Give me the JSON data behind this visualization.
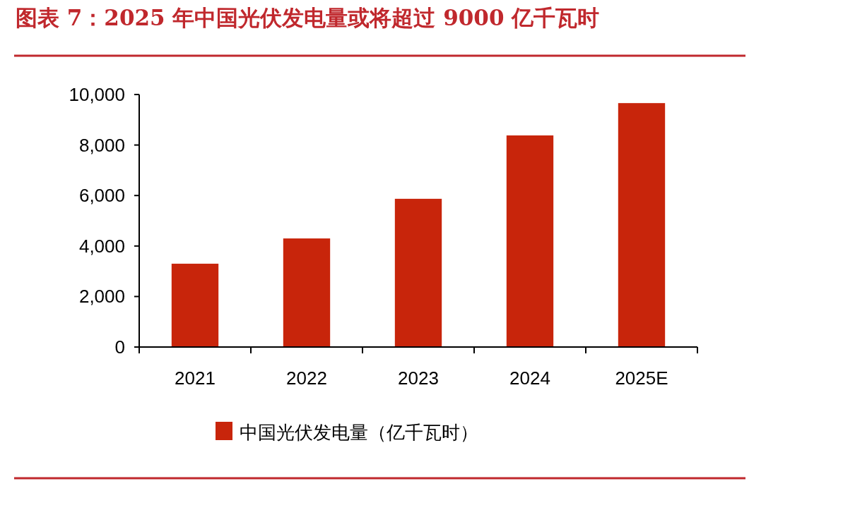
{
  "chart_data": {
    "type": "bar",
    "title": "图表 7：2025 年中国光伏发电量或将超过 9000 亿千瓦时",
    "categories": [
      "2021",
      "2022",
      "2023",
      "2024",
      "2025E"
    ],
    "series": [
      {
        "name": "中国光伏发电量（亿千瓦时）",
        "color": "#c8250b",
        "values": [
          3300,
          4300,
          5870,
          8380,
          9660
        ]
      }
    ],
    "ylim": [
      0,
      10000
    ],
    "yticks": [
      {
        "value": 0,
        "label": "0"
      },
      {
        "value": 2000,
        "label": "2,000"
      },
      {
        "value": 4000,
        "label": "4,000"
      },
      {
        "value": 6000,
        "label": "6,000"
      },
      {
        "value": 8000,
        "label": "8,000"
      },
      {
        "value": 10000,
        "label": "10,000"
      }
    ],
    "grid": false,
    "legend": "bottom"
  }
}
